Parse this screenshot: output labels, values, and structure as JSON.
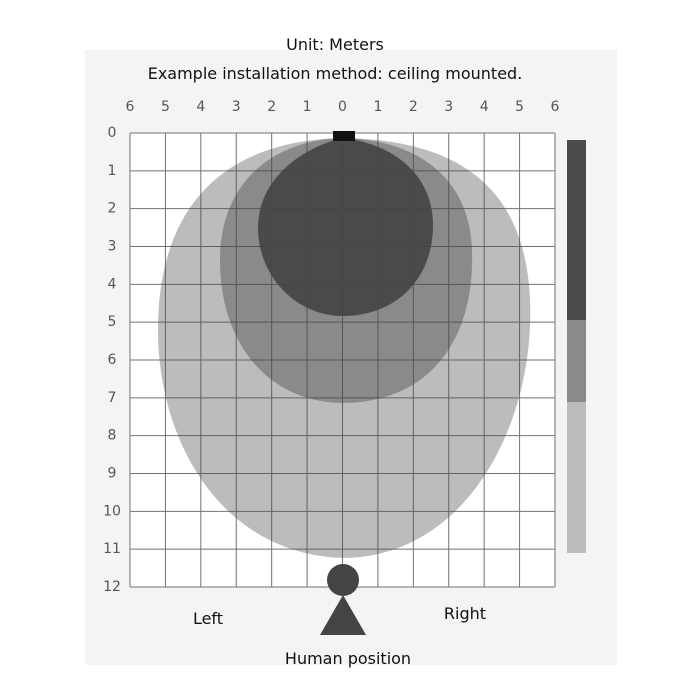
{
  "header": {
    "unit": "Unit: Meters",
    "note": "Example installation method: ceiling mounted."
  },
  "grid": {
    "top_labels": [
      6,
      5,
      4,
      3,
      2,
      1,
      0,
      1,
      2,
      3,
      4,
      5,
      6
    ],
    "left_labels": [
      0,
      1,
      2,
      3,
      4,
      5,
      6,
      7,
      8,
      9,
      10,
      11,
      12
    ]
  },
  "labels": {
    "left": "Left",
    "right": "Right",
    "human": "Human position"
  }
}
